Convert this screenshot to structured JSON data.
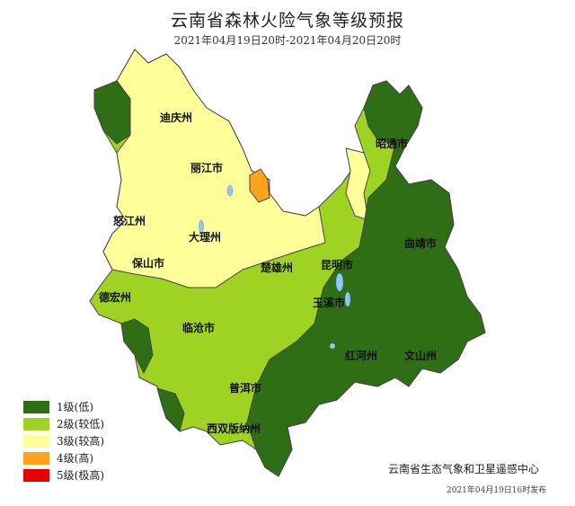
{
  "header": {
    "title": "云南省森林火险气象等级预报",
    "period": "2021年04月19日20时-2021年04月20日20时"
  },
  "colors": {
    "level1": "#2f6e14",
    "level2": "#9fd323",
    "level3": "#ffff99",
    "level4": "#ffa31a",
    "level5": "#e60000",
    "border": "#444444",
    "lake": "#8fc8ff"
  },
  "legend": [
    {
      "label": "1级(低)",
      "color": "#2f6e14"
    },
    {
      "label": "2级(较低)",
      "color": "#9fd323"
    },
    {
      "label": "3级(较高)",
      "color": "#ffff99"
    },
    {
      "label": "4级(高)",
      "color": "#ffa31a"
    },
    {
      "label": "5级(极高)",
      "color": "#e60000"
    }
  ],
  "regions": {
    "diqing": "迪庆州",
    "lijiang": "丽江市",
    "nujiang": "怒江州",
    "dali": "大理州",
    "baoshan": "保山市",
    "dehong": "德宏州",
    "chuxiong": "楚雄州",
    "kunming": "昆明市",
    "zhaotong": "昭通市",
    "qujing": "曲靖市",
    "yuxi": "玉溪市",
    "lincang": "临沧市",
    "honghe": "红河州",
    "wenshan": "文山州",
    "puer": "普洱市",
    "xishuangbanna": "西双版纳州"
  },
  "footer": {
    "organization": "云南省生态气象和卫星遥感中心",
    "published": "2021年04月19日16时发布"
  }
}
